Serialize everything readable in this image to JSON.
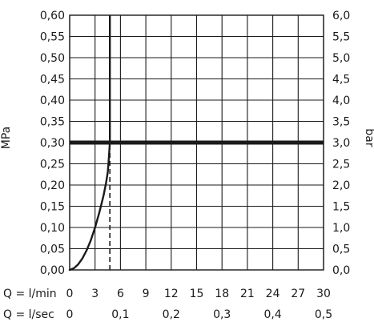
{
  "chart_data": {
    "type": "line",
    "ylabel_left": "MPa",
    "ylabel_right": "bar",
    "y_left": {
      "range": [
        0,
        0.6
      ],
      "step": 0.05,
      "ticks": [
        "0,00",
        "0,05",
        "0,10",
        "0,15",
        "0,20",
        "0,25",
        "0,30",
        "0,35",
        "0,40",
        "0,45",
        "0,50",
        "0,55",
        "0,60"
      ]
    },
    "y_right": {
      "range": [
        0,
        6.0
      ],
      "step": 0.5,
      "ticks": [
        "0,0",
        "0,5",
        "1,0",
        "1,5",
        "2,0",
        "2,5",
        "3,0",
        "3,5",
        "4,0",
        "4,5",
        "5,0",
        "5,5",
        "6,0"
      ]
    },
    "x_primary": {
      "label": "Q = l/min",
      "range": [
        0,
        30
      ],
      "step": 3,
      "ticks": [
        "0",
        "3",
        "6",
        "9",
        "12",
        "15",
        "18",
        "21",
        "24",
        "27",
        "30"
      ]
    },
    "x_secondary": {
      "label": "Q = l/sec",
      "range": [
        0,
        0.5
      ],
      "ticks": [
        {
          "value": 0,
          "label": "0"
        },
        {
          "value": 0.1,
          "label": "0,1"
        },
        {
          "value": 0.2,
          "label": "0,2"
        },
        {
          "value": 0.3,
          "label": "0,3"
        },
        {
          "value": 0.4,
          "label": "0,4"
        },
        {
          "value": 0.5,
          "label": "0,5"
        }
      ]
    },
    "grid": true,
    "series": [
      {
        "kind": "curve",
        "x": [
          0,
          0.5,
          1,
          1.5,
          2,
          2.5,
          3,
          3.5,
          4,
          4.3,
          4.5,
          4.6,
          4.7,
          4.75
        ],
        "y": [
          0,
          0.004,
          0.013,
          0.027,
          0.046,
          0.07,
          0.1,
          0.135,
          0.175,
          0.205,
          0.23,
          0.255,
          0.285,
          0.3
        ]
      },
      {
        "kind": "vertical",
        "x": 4.75,
        "y": [
          0.3,
          0.6
        ]
      },
      {
        "kind": "horizontal-reference",
        "y": 0.3
      },
      {
        "kind": "dashed-drop",
        "x": 4.75,
        "y": [
          0,
          0.3
        ]
      }
    ],
    "colors": {
      "line": "#1a1a1a",
      "grid": "#1a1a1a"
    }
  }
}
